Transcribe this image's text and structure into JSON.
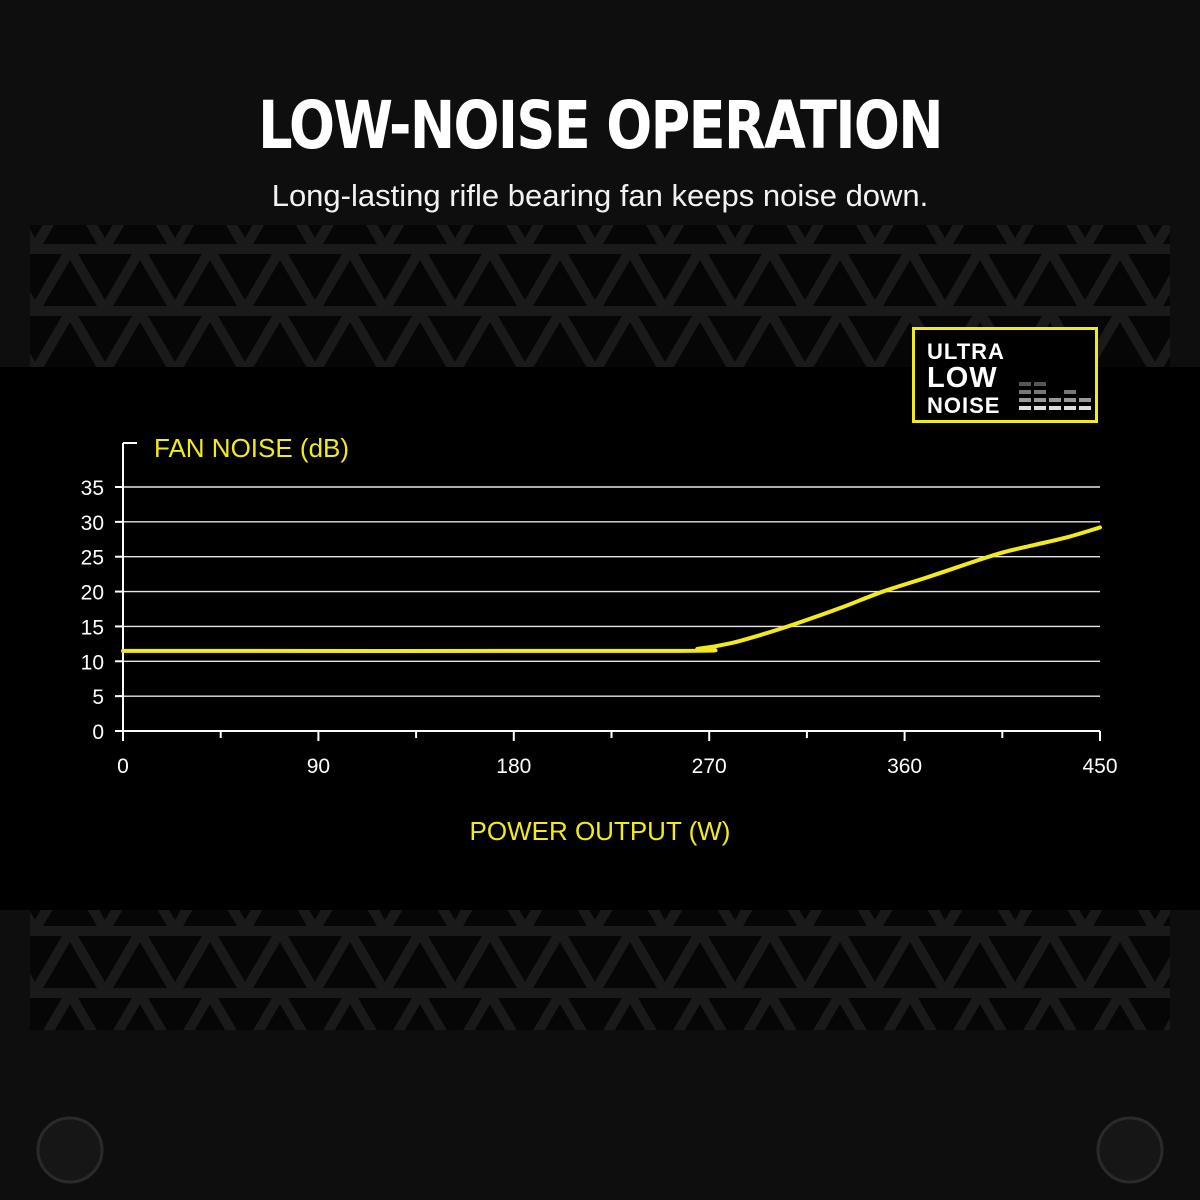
{
  "header": {
    "title": "LOW-NOISE OPERATION",
    "subtitle": "Long-lasting rifle bearing fan keeps noise down."
  },
  "badge": {
    "line1": "ULTRA",
    "line2": "LOW",
    "line3": "NOISE",
    "border_color": "#f2ea1d"
  },
  "colors": {
    "accent": "#f2ea1d",
    "grid": "#ffffff",
    "background": "#000000"
  },
  "chart_data": {
    "type": "line",
    "title": "",
    "ylabel": "FAN NOISE (dB)",
    "xlabel": "POWER OUTPUT (W)",
    "xlim": [
      0,
      450
    ],
    "ylim": [
      0,
      35
    ],
    "xticks": [
      0,
      90,
      180,
      270,
      360,
      450
    ],
    "yticks": [
      0,
      5,
      10,
      15,
      20,
      25,
      30,
      35
    ],
    "x_minor_ticks": [
      45,
      135,
      225,
      315,
      405
    ],
    "grid": true,
    "series": [
      {
        "color": "#f2ea1d",
        "points": [
          [
            0,
            11.5
          ],
          [
            250,
            11.5
          ],
          [
            265,
            11.8
          ],
          [
            280,
            12.6
          ],
          [
            295,
            13.9
          ],
          [
            310,
            15.4
          ],
          [
            330,
            17.6
          ],
          [
            350,
            20.0
          ],
          [
            370,
            22.0
          ],
          [
            390,
            24.1
          ],
          [
            405,
            25.6
          ],
          [
            420,
            26.7
          ],
          [
            435,
            27.8
          ],
          [
            450,
            29.2
          ]
        ]
      }
    ]
  }
}
